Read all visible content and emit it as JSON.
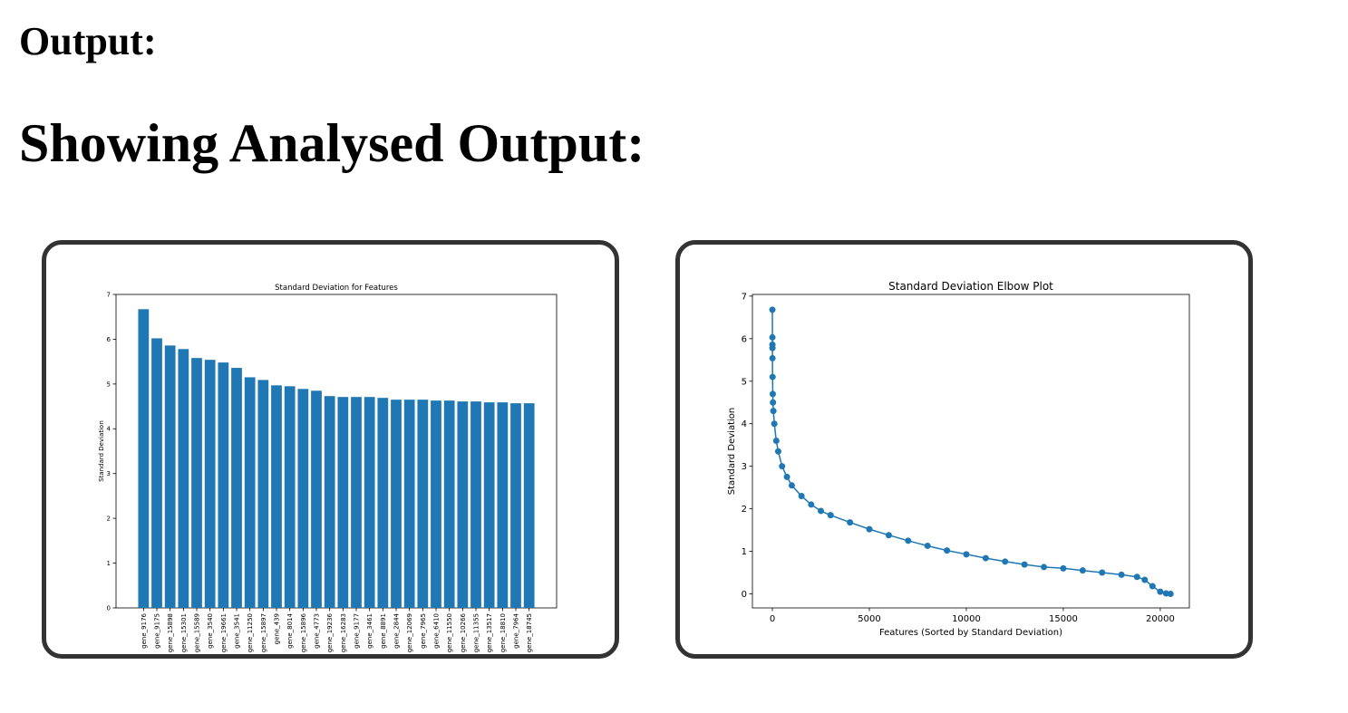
{
  "headings": [
    "Output:",
    "Showing Analysed Output:"
  ],
  "chart_data": [
    {
      "type": "bar",
      "title": "Standard Deviation for Features",
      "ylabel": "Standard Deviation",
      "color": "#1f77b4",
      "categories": [
        "gene_9176",
        "gene_9175",
        "gene_15898",
        "gene_15301",
        "gene_15589",
        "gene_3540",
        "gene_19661",
        "gene_3541",
        "gene_11250",
        "gene_15897",
        "gene_439",
        "gene_8014",
        "gene_15896",
        "gene_4773",
        "gene_19236",
        "gene_16283",
        "gene_9177",
        "gene_3461",
        "gene_8891",
        "gene_2844",
        "gene_12069",
        "gene_7965",
        "gene_6410",
        "gene_11550",
        "gene_10266",
        "gene_11355",
        "gene_13517",
        "gene_18810",
        "gene_7964",
        "gene_18745"
      ],
      "values": [
        6.67,
        6.02,
        5.86,
        5.78,
        5.58,
        5.54,
        5.48,
        5.36,
        5.15,
        5.09,
        4.97,
        4.95,
        4.89,
        4.85,
        4.73,
        4.71,
        4.71,
        4.71,
        4.69,
        4.65,
        4.65,
        4.65,
        4.63,
        4.63,
        4.61,
        4.61,
        4.59,
        4.59,
        4.57,
        4.57
      ],
      "ylim": [
        0,
        7
      ],
      "yticks": [
        0,
        1,
        2,
        3,
        4,
        5,
        6,
        7
      ]
    },
    {
      "type": "line",
      "title": "Standard Deviation Elbow Plot",
      "xlabel": "Features (Sorted by Standard Deviation)",
      "ylabel": "Standard Deviation",
      "color": "#1f77b4",
      "x": [
        0,
        1,
        2,
        3,
        5,
        10,
        20,
        30,
        50,
        100,
        200,
        300,
        500,
        750,
        1000,
        1500,
        2000,
        2500,
        3000,
        4000,
        5000,
        6000,
        7000,
        8000,
        9000,
        10000,
        11000,
        12000,
        13000,
        14000,
        15000,
        16000,
        17000,
        18000,
        18800,
        19200,
        19600,
        20000,
        20300,
        20530
      ],
      "values": [
        6.68,
        6.03,
        5.86,
        5.78,
        5.54,
        5.1,
        4.7,
        4.5,
        4.3,
        4.0,
        3.6,
        3.35,
        3.0,
        2.75,
        2.55,
        2.3,
        2.1,
        1.95,
        1.85,
        1.68,
        1.52,
        1.38,
        1.25,
        1.13,
        1.02,
        0.93,
        0.84,
        0.76,
        0.69,
        0.63,
        0.6,
        0.55,
        0.5,
        0.45,
        0.4,
        0.33,
        0.18,
        0.05,
        0.01,
        0.0
      ],
      "xlim": [
        -1030,
        21500
      ],
      "ylim": [
        -0.33,
        7.04
      ],
      "xticks": [
        0,
        5000,
        10000,
        15000,
        20000
      ],
      "yticks": [
        0,
        1,
        2,
        3,
        4,
        5,
        6,
        7
      ]
    }
  ]
}
